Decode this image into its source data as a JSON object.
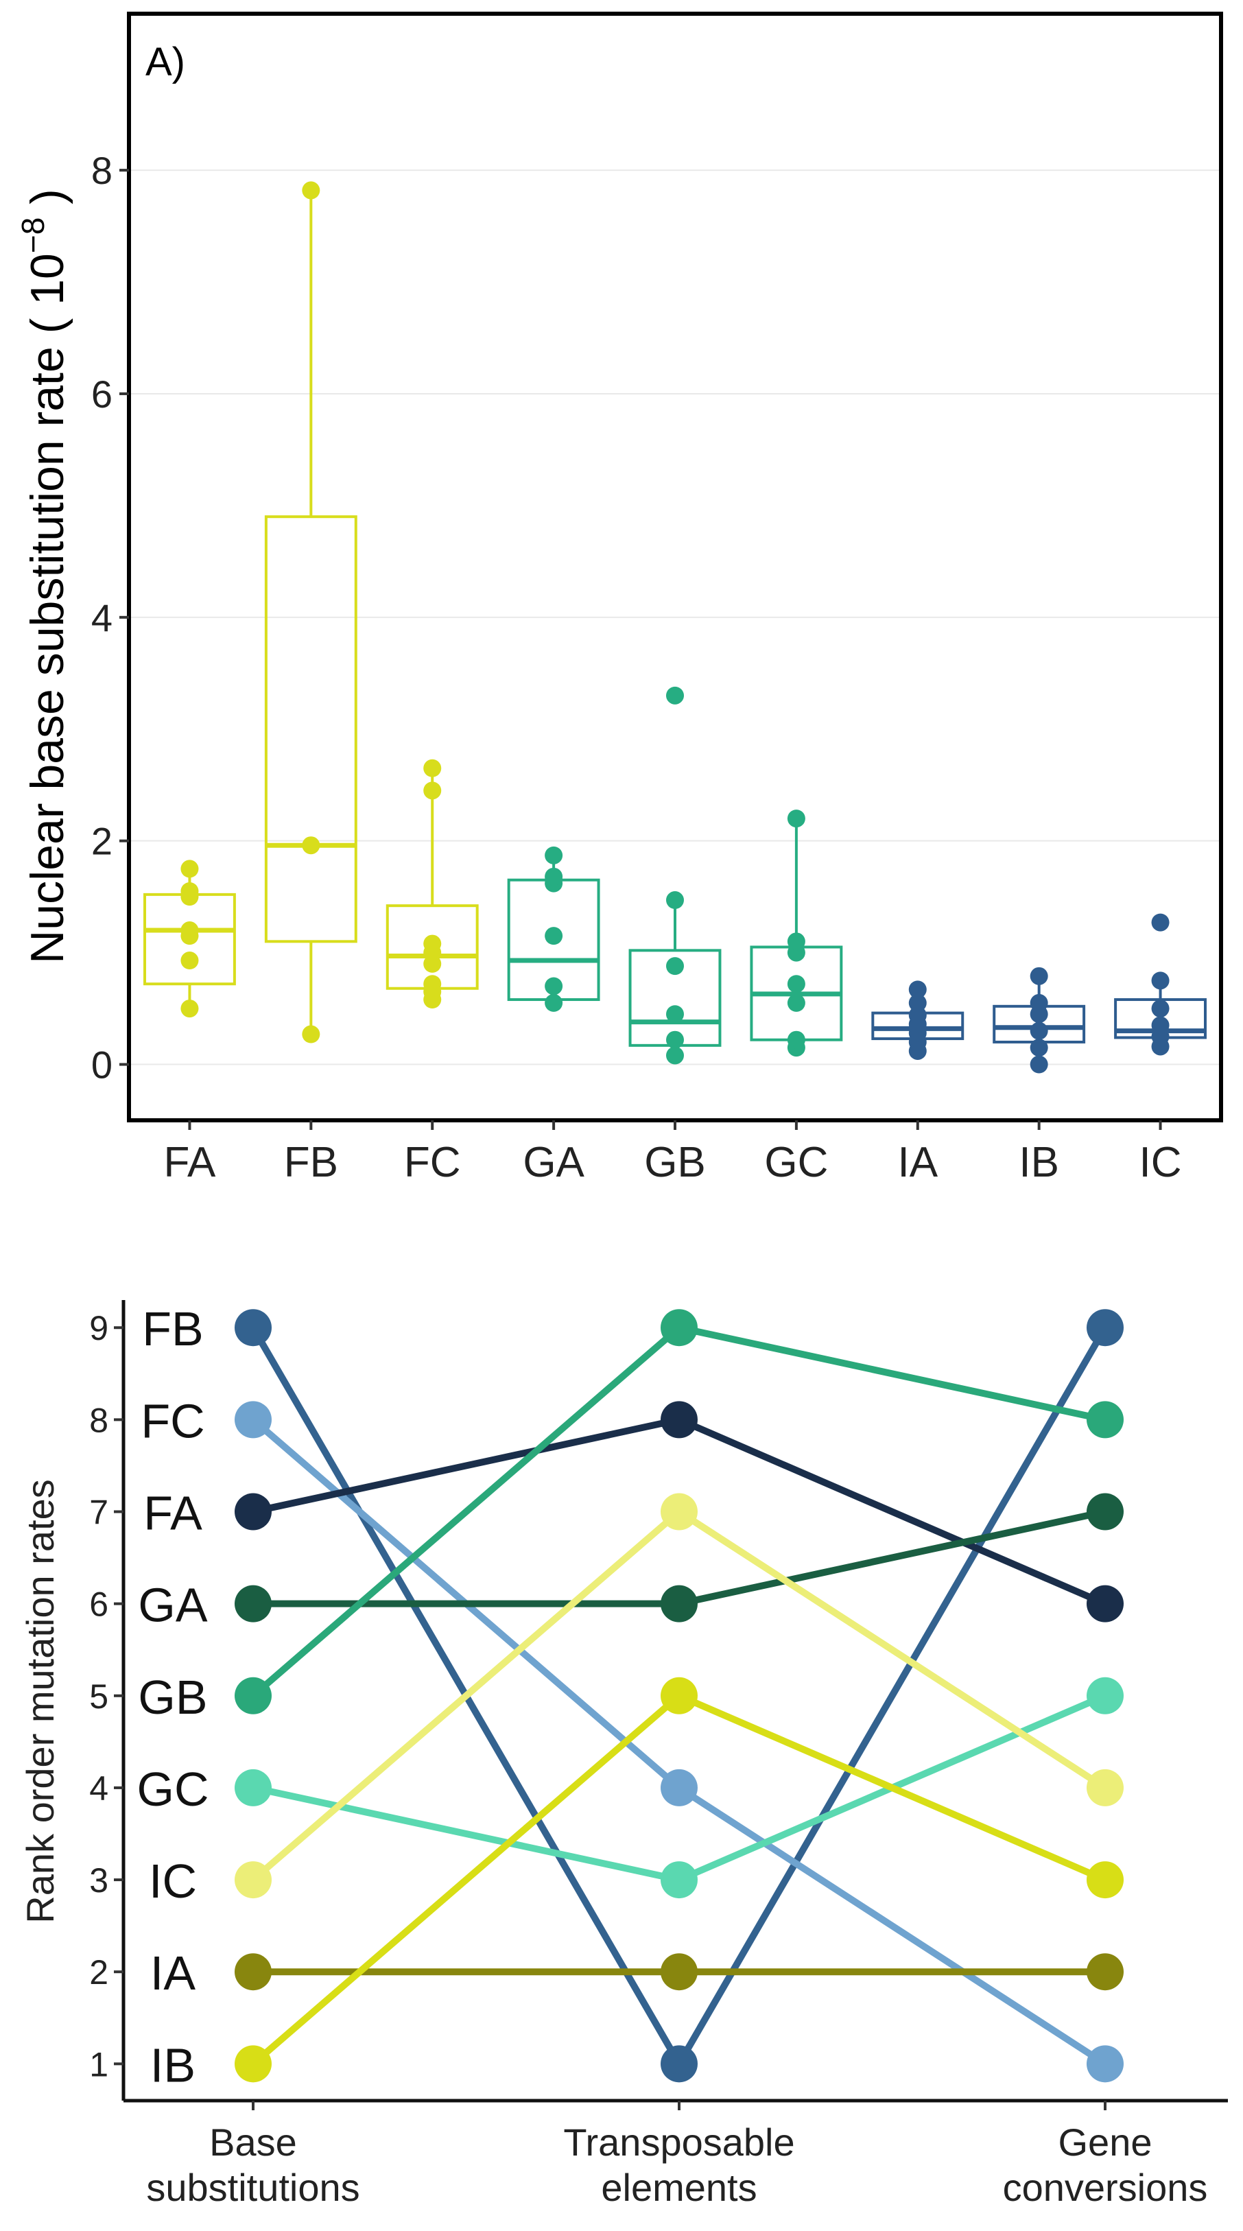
{
  "chart_data": [
    {
      "type": "box",
      "panel_label": "A)",
      "ylabel": "Nuclear base substitution rate ( 10",
      "ylabel_exponent": "−8",
      "ylabel_close": ")",
      "ylim": [
        -0.5,
        9.4
      ],
      "yticks": [
        0,
        2,
        4,
        6,
        8
      ],
      "grid": true,
      "groups": [
        {
          "name": "FA",
          "color": "#d8dd1c",
          "q1": 0.72,
          "median": 1.2,
          "q3": 1.52,
          "whisker_low": 0.5,
          "whisker_high": 1.75,
          "points": [
            0.5,
            0.93,
            1.15,
            1.2,
            1.5,
            1.55,
            1.75
          ]
        },
        {
          "name": "FB",
          "color": "#d8dd1c",
          "q1": 1.1,
          "median": 1.96,
          "q3": 4.9,
          "whisker_low": 0.27,
          "whisker_high": 7.82,
          "points": [
            0.27,
            1.96,
            7.82
          ]
        },
        {
          "name": "FC",
          "color": "#d8dd1c",
          "q1": 0.68,
          "median": 0.97,
          "q3": 1.42,
          "whisker_low": 0.58,
          "whisker_high": 2.65,
          "points": [
            0.58,
            0.65,
            0.72,
            0.9,
            1.0,
            1.08,
            2.45,
            2.65
          ]
        },
        {
          "name": "GA",
          "color": "#26ad82",
          "q1": 0.58,
          "median": 0.93,
          "q3": 1.65,
          "whisker_low": 0.55,
          "whisker_high": 1.87,
          "points": [
            0.55,
            0.7,
            1.15,
            1.62,
            1.68,
            1.87
          ]
        },
        {
          "name": "GB",
          "color": "#26ad82",
          "q1": 0.17,
          "median": 0.38,
          "q3": 1.02,
          "whisker_low": 0.08,
          "whisker_high": 1.47,
          "points": [
            0.08,
            0.22,
            0.45,
            0.88,
            1.47,
            3.3
          ]
        },
        {
          "name": "GC",
          "color": "#26ad82",
          "q1": 0.22,
          "median": 0.63,
          "q3": 1.05,
          "whisker_low": 0.15,
          "whisker_high": 2.2,
          "points": [
            0.15,
            0.22,
            0.55,
            0.72,
            1.0,
            1.1,
            2.2
          ]
        },
        {
          "name": "IA",
          "color": "#2e5c8f",
          "q1": 0.23,
          "median": 0.32,
          "q3": 0.46,
          "whisker_low": 0.12,
          "whisker_high": 0.67,
          "points": [
            0.12,
            0.2,
            0.28,
            0.36,
            0.44,
            0.55,
            0.67
          ]
        },
        {
          "name": "IB",
          "color": "#2e5c8f",
          "q1": 0.2,
          "median": 0.33,
          "q3": 0.52,
          "whisker_low": 0.0,
          "whisker_high": 0.79,
          "points": [
            0.0,
            0.15,
            0.3,
            0.45,
            0.55,
            0.79
          ]
        },
        {
          "name": "IC",
          "color": "#2e5c8f",
          "q1": 0.24,
          "median": 0.3,
          "q3": 0.58,
          "whisker_low": 0.16,
          "whisker_high": 0.75,
          "points": [
            0.16,
            0.25,
            0.35,
            0.5,
            0.75,
            1.27
          ]
        }
      ]
    },
    {
      "type": "line",
      "ylabel": "Rank order mutation rates",
      "yticks": [
        1,
        2,
        3,
        4,
        5,
        6,
        7,
        8,
        9
      ],
      "ylim": [
        0.6,
        9.3
      ],
      "categories": [
        "Base\nsubstitutions",
        "Transposable\nelements",
        "Gene\nconversions"
      ],
      "rank_labels": [
        {
          "rank": 9,
          "text": "FB"
        },
        {
          "rank": 8,
          "text": "FC"
        },
        {
          "rank": 7,
          "text": "FA"
        },
        {
          "rank": 6,
          "text": "GA"
        },
        {
          "rank": 5,
          "text": "GB"
        },
        {
          "rank": 4,
          "text": "GC"
        },
        {
          "rank": 3,
          "text": "IC"
        },
        {
          "rank": 2,
          "text": "IA"
        },
        {
          "rank": 1,
          "text": "IB"
        }
      ],
      "series": [
        {
          "name": "FB",
          "color": "#33628f",
          "values": [
            9,
            1,
            9
          ]
        },
        {
          "name": "FC",
          "color": "#6fa3cf",
          "values": [
            8,
            4,
            1
          ]
        },
        {
          "name": "FA",
          "color": "#1a2e4a",
          "values": [
            7,
            8,
            6
          ]
        },
        {
          "name": "GA",
          "color": "#1a5e42",
          "values": [
            6,
            6,
            7
          ]
        },
        {
          "name": "GB",
          "color": "#2aa87a",
          "values": [
            5,
            9,
            8
          ]
        },
        {
          "name": "GC",
          "color": "#5ad8b0",
          "values": [
            4,
            3,
            5
          ]
        },
        {
          "name": "IC",
          "color": "#ecee78",
          "values": [
            3,
            7,
            4
          ]
        },
        {
          "name": "IA",
          "color": "#88860e",
          "values": [
            2,
            2,
            2
          ]
        },
        {
          "name": "IB",
          "color": "#d8de16",
          "values": [
            1,
            5,
            3
          ]
        }
      ]
    }
  ]
}
